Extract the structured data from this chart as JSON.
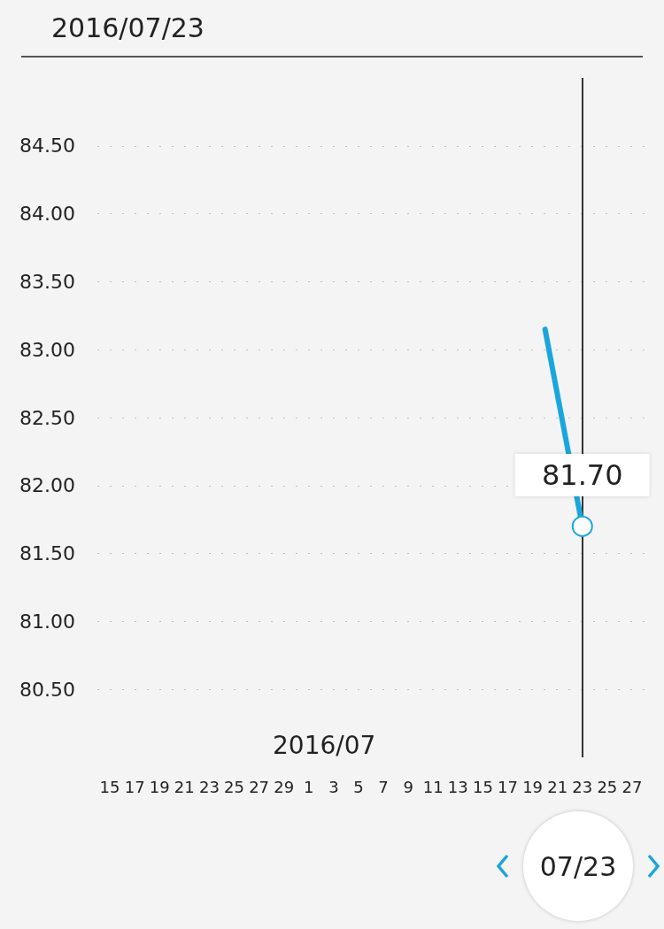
{
  "chart_data": {
    "type": "line",
    "title": "2016/07/23",
    "x": [
      "2016-07-20",
      "2016-07-23"
    ],
    "series": [
      {
        "color": "#1aa6dc",
        "values": [
          83.15,
          81.7
        ],
        "value_labels": [
          null,
          "81.70"
        ]
      }
    ],
    "xlim": [
      "2016-06-14",
      "2016-07-28"
    ],
    "xticks": [
      {
        "value": "2016-06-15",
        "label": "15"
      },
      {
        "value": "2016-06-17",
        "label": "17"
      },
      {
        "value": "2016-06-19",
        "label": "19"
      },
      {
        "value": "2016-06-21",
        "label": "21"
      },
      {
        "value": "2016-06-23",
        "label": "23"
      },
      {
        "value": "2016-06-25",
        "label": "25"
      },
      {
        "value": "2016-06-27",
        "label": "27"
      },
      {
        "value": "2016-06-29",
        "label": "29"
      },
      {
        "value": "2016-07-01",
        "label": "1"
      },
      {
        "value": "2016-07-03",
        "label": "3"
      },
      {
        "value": "2016-07-05",
        "label": "5"
      },
      {
        "value": "2016-07-07",
        "label": "7"
      },
      {
        "value": "2016-07-09",
        "label": "9"
      },
      {
        "value": "2016-07-11",
        "label": "11"
      },
      {
        "value": "2016-07-13",
        "label": "13"
      },
      {
        "value": "2016-07-15",
        "label": "15"
      },
      {
        "value": "2016-07-17",
        "label": "17"
      },
      {
        "value": "2016-07-19",
        "label": "19"
      },
      {
        "value": "2016-07-21",
        "label": "21"
      },
      {
        "value": "2016-07-23",
        "label": "23"
      },
      {
        "value": "2016-07-25",
        "label": "25"
      },
      {
        "value": "2016-07-27",
        "label": "27"
      }
    ],
    "ylim": [
      80,
      85
    ],
    "yticks": [
      {
        "value": 80.5,
        "label": "80.50"
      },
      {
        "value": 81,
        "label": "81.00"
      },
      {
        "value": 81.5,
        "label": "81.50"
      },
      {
        "value": 82,
        "label": "82.00"
      },
      {
        "value": 82.5,
        "label": "82.50"
      },
      {
        "value": 83,
        "label": "83.00"
      },
      {
        "value": 83.5,
        "label": "83.50"
      },
      {
        "value": 84,
        "label": "84.00"
      },
      {
        "value": 84.5,
        "label": "84.50"
      }
    ],
    "grid": "y",
    "line_style": "solid",
    "marker": "circle",
    "ref_lines": [
      {
        "axis": "x",
        "value": "2016-07-23",
        "label": null,
        "color": "#333333"
      }
    ],
    "annotations": [
      "2016/07",
      "07/23"
    ]
  }
}
